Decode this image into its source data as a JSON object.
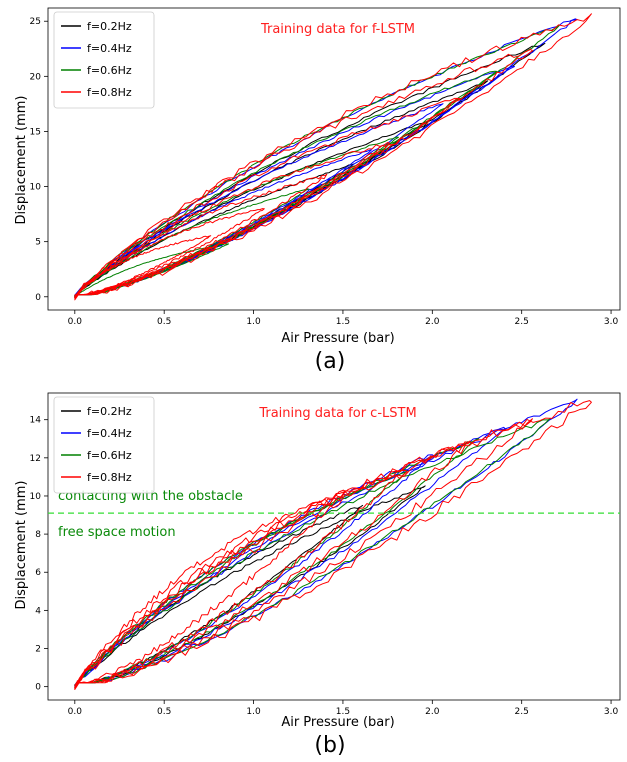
{
  "chart_data": [
    {
      "type": "line",
      "title": "Training data for f-LSTM",
      "panel_label": "(a)",
      "xlabel": "Air Pressure (bar)",
      "ylabel": "Displacement (mm)",
      "xlim": [
        -0.15,
        3.05
      ],
      "ylim": [
        -1.2,
        26.2
      ],
      "xticks": [
        "0.0",
        "0.5",
        "1.0",
        "1.5",
        "2.0",
        "2.5",
        "3.0"
      ],
      "xtick_values": [
        0.0,
        0.5,
        1.0,
        1.5,
        2.0,
        2.5,
        3.0
      ],
      "yticks": [
        "0",
        "5",
        "10",
        "15",
        "20",
        "25"
      ],
      "ytick_values": [
        0,
        5,
        10,
        15,
        20,
        25
      ],
      "legend_placement": "top-left",
      "series": [
        {
          "name": "f=0.2Hz",
          "color": "#000000",
          "loops": [
            {
              "pmax": 2.62,
              "dmax": 23.0,
              "width": 0.3
            },
            {
              "pmax": 2.3,
              "dmax": 19.5,
              "width": 0.27
            },
            {
              "pmax": 1.95,
              "dmax": 15.8,
              "width": 0.24
            },
            {
              "pmax": 1.55,
              "dmax": 12.0,
              "width": 0.21
            }
          ]
        },
        {
          "name": "f=0.4Hz",
          "color": "#0000ff",
          "loops": [
            {
              "pmax": 2.8,
              "dmax": 25.3,
              "width": 0.38
            },
            {
              "pmax": 2.45,
              "dmax": 21.0,
              "width": 0.34
            },
            {
              "pmax": 2.05,
              "dmax": 17.5,
              "width": 0.3
            },
            {
              "pmax": 1.65,
              "dmax": 13.3,
              "width": 0.27
            }
          ]
        },
        {
          "name": "f=0.6Hz",
          "color": "#008000",
          "loops": [
            {
              "pmax": 2.7,
              "dmax": 24.5,
              "width": 0.42
            },
            {
              "pmax": 2.35,
              "dmax": 20.5,
              "width": 0.38
            },
            {
              "pmax": 1.8,
              "dmax": 14.5,
              "width": 0.34
            },
            {
              "pmax": 1.3,
              "dmax": 9.8,
              "width": 0.3
            },
            {
              "pmax": 0.85,
              "dmax": 4.8,
              "width": 0.26
            }
          ]
        },
        {
          "name": "f=0.8Hz",
          "color": "#ff0000",
          "loops": [
            {
              "pmax": 2.88,
              "dmax": 25.5,
              "width": 0.55
            },
            {
              "pmax": 2.55,
              "dmax": 22.5,
              "width": 0.5
            },
            {
              "pmax": 2.15,
              "dmax": 18.0,
              "width": 0.46
            },
            {
              "pmax": 1.75,
              "dmax": 14.0,
              "width": 0.42
            },
            {
              "pmax": 1.4,
              "dmax": 11.0,
              "width": 0.38
            },
            {
              "pmax": 1.05,
              "dmax": 8.0,
              "width": 0.34
            },
            {
              "pmax": 0.75,
              "dmax": 5.5,
              "width": 0.3
            }
          ]
        }
      ]
    },
    {
      "type": "line",
      "title": "Training data for c-LSTM",
      "panel_label": "(b)",
      "xlabel": "Air Pressure (bar)",
      "ylabel": "Displacement (mm)",
      "xlim": [
        -0.15,
        3.05
      ],
      "ylim": [
        -0.7,
        15.4
      ],
      "xticks": [
        "0.0",
        "0.5",
        "1.0",
        "1.5",
        "2.0",
        "2.5",
        "3.0"
      ],
      "xtick_values": [
        0.0,
        0.5,
        1.0,
        1.5,
        2.0,
        2.5,
        3.0
      ],
      "yticks": [
        "0",
        "2",
        "4",
        "6",
        "8",
        "10",
        "12",
        "14"
      ],
      "ytick_values": [
        0,
        2,
        4,
        6,
        8,
        10,
        12,
        14
      ],
      "legend_placement": "top-left",
      "threshold": {
        "y": 9.1,
        "color": "#33dd33"
      },
      "annotations": {
        "above": "contacting with the obstacle",
        "below": "free space motion"
      },
      "series": [
        {
          "name": "f=0.2Hz",
          "color": "#000000",
          "loops": [
            {
              "pmax": 1.95,
              "dmax": 10.5,
              "width": 0.28
            },
            {
              "pmax": 1.6,
              "dmax": 9.5,
              "width": 0.25
            }
          ]
        },
        {
          "name": "f=0.4Hz",
          "color": "#0000ff",
          "loops": [
            {
              "pmax": 2.8,
              "dmax": 15.0,
              "width": 0.4
            },
            {
              "pmax": 2.4,
              "dmax": 13.6,
              "width": 0.36
            },
            {
              "pmax": 2.0,
              "dmax": 12.2,
              "width": 0.32
            }
          ]
        },
        {
          "name": "f=0.6Hz",
          "color": "#008000",
          "loops": [
            {
              "pmax": 2.65,
              "dmax": 14.0,
              "width": 0.45
            },
            {
              "pmax": 2.25,
              "dmax": 13.0,
              "width": 0.4
            },
            {
              "pmax": 1.85,
              "dmax": 11.3,
              "width": 0.36
            }
          ]
        },
        {
          "name": "f=0.8Hz",
          "color": "#ff0000",
          "loops": [
            {
              "pmax": 2.88,
              "dmax": 15.0,
              "width": 0.6
            },
            {
              "pmax": 2.55,
              "dmax": 14.0,
              "width": 0.56
            },
            {
              "pmax": 2.2,
              "dmax": 12.8,
              "width": 0.52
            },
            {
              "pmax": 1.85,
              "dmax": 11.4,
              "width": 0.48
            },
            {
              "pmax": 1.5,
              "dmax": 10.2,
              "width": 0.44
            }
          ]
        }
      ]
    }
  ]
}
